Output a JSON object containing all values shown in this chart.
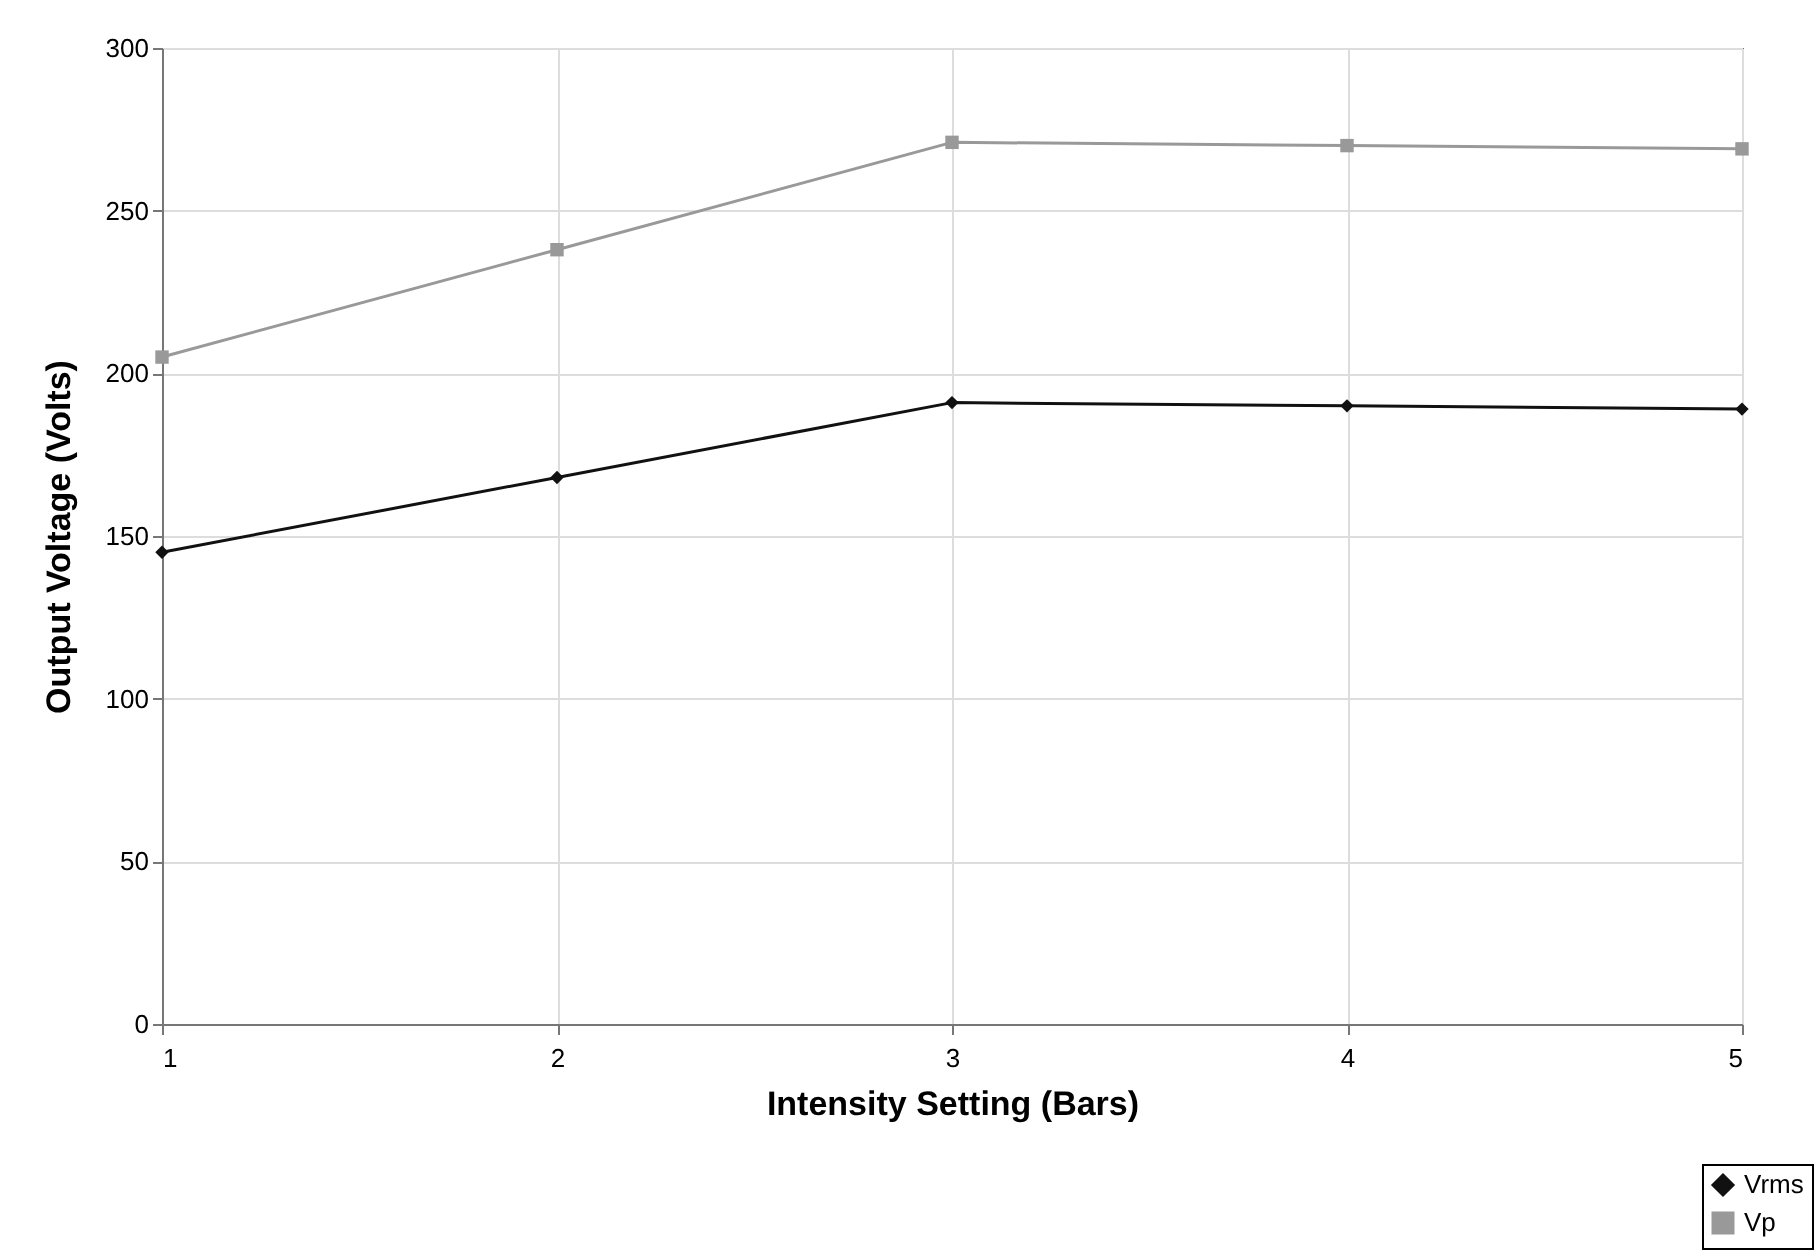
{
  "chart_data": {
    "type": "line",
    "xlabel": "Intensity Setting (Bars)",
    "ylabel": "Output Voltage (Volts)",
    "x": [
      1,
      2,
      3,
      4,
      5
    ],
    "series": [
      {
        "name": "Vrms",
        "color": "#111111",
        "marker": "diamond",
        "values": [
          145,
          168,
          191,
          190,
          189
        ]
      },
      {
        "name": "Vp",
        "color": "#999999",
        "marker": "square",
        "values": [
          205,
          238,
          271,
          270,
          269
        ]
      }
    ],
    "xlim": [
      1,
      5
    ],
    "xticks": [
      1,
      2,
      3,
      4,
      5
    ],
    "ylim": [
      0,
      300
    ],
    "yticks": [
      0,
      50,
      100,
      150,
      200,
      250,
      300
    ],
    "grid": true,
    "legend": "bottom right"
  }
}
